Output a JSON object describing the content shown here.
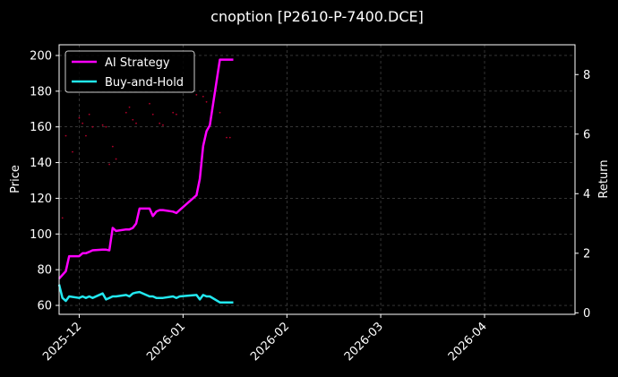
{
  "chart_data": {
    "type": "line",
    "title": "cnoption [P2610-P-7400.DCE]",
    "xlabel": "",
    "ylabel": "Price",
    "y2label": "Return",
    "x_ticks": [
      "2025-12",
      "2026-01",
      "2026-02",
      "2026-03",
      "2026-04"
    ],
    "xlim": [
      "2025-11-25",
      "2026-04-28"
    ],
    "ylim": [
      55,
      206
    ],
    "y_ticks": [
      60,
      80,
      100,
      120,
      140,
      160,
      180,
      200
    ],
    "y2lim": [
      -0.05,
      9.0
    ],
    "y2_ticks": [
      0,
      2,
      4,
      6,
      8
    ],
    "grid": true,
    "legend_position": "top-left",
    "series": [
      {
        "name": "AI Strategy",
        "axis": "right",
        "color": "#ff00ff",
        "x": [
          "2025-11-25",
          "2025-11-27",
          "2025-11-28",
          "2025-12-01",
          "2025-12-02",
          "2025-12-03",
          "2025-12-04",
          "2025-12-05",
          "2025-12-08",
          "2025-12-09",
          "2025-12-10",
          "2025-12-11",
          "2025-12-12",
          "2025-12-15",
          "2025-12-16",
          "2025-12-17",
          "2025-12-18",
          "2025-12-19",
          "2025-12-22",
          "2025-12-23",
          "2025-12-24",
          "2025-12-25",
          "2025-12-26",
          "2025-12-29",
          "2025-12-30",
          "2025-12-31",
          "2026-01-05",
          "2026-01-06",
          "2026-01-07",
          "2026-01-08",
          "2026-01-09",
          "2026-01-12",
          "2026-01-13",
          "2026-01-14",
          "2026-01-15",
          "2026-01-16"
        ],
        "y": [
          1.15,
          1.4,
          1.9,
          1.9,
          2.0,
          2.0,
          2.05,
          2.1,
          2.12,
          2.12,
          2.1,
          2.85,
          2.75,
          2.8,
          2.8,
          2.85,
          3.0,
          3.5,
          3.5,
          3.25,
          3.4,
          3.45,
          3.45,
          3.4,
          3.35,
          3.45,
          3.95,
          4.5,
          5.6,
          6.1,
          6.3,
          8.5,
          8.5,
          8.5,
          8.5,
          8.5
        ]
      },
      {
        "name": "Buy-and-Hold",
        "axis": "right",
        "color": "#22e8f0",
        "x": [
          "2025-11-25",
          "2025-11-26",
          "2025-11-27",
          "2025-11-28",
          "2025-12-01",
          "2025-12-02",
          "2025-12-03",
          "2025-12-04",
          "2025-12-05",
          "2025-12-08",
          "2025-12-09",
          "2025-12-10",
          "2025-12-11",
          "2025-12-12",
          "2025-12-15",
          "2025-12-16",
          "2025-12-17",
          "2025-12-18",
          "2025-12-19",
          "2025-12-22",
          "2025-12-23",
          "2025-12-24",
          "2025-12-25",
          "2025-12-26",
          "2025-12-29",
          "2025-12-30",
          "2025-12-31",
          "2026-01-05",
          "2026-01-06",
          "2026-01-07",
          "2026-01-08",
          "2026-01-09",
          "2026-01-12",
          "2026-01-13",
          "2026-01-14",
          "2026-01-15",
          "2026-01-16"
        ],
        "y": [
          0.95,
          0.5,
          0.4,
          0.55,
          0.5,
          0.55,
          0.5,
          0.55,
          0.5,
          0.65,
          0.45,
          0.5,
          0.55,
          0.55,
          0.6,
          0.55,
          0.65,
          0.68,
          0.7,
          0.55,
          0.55,
          0.5,
          0.5,
          0.5,
          0.55,
          0.5,
          0.55,
          0.6,
          0.45,
          0.6,
          0.55,
          0.55,
          0.35,
          0.35,
          0.35,
          0.35,
          0.35
        ]
      },
      {
        "name": "",
        "kind": "scatter",
        "axis": "left",
        "color": "#b0002a",
        "x": [
          "2025-11-26",
          "2025-11-27",
          "2025-11-29",
          "2025-12-01",
          "2025-12-02",
          "2025-12-03",
          "2025-12-04",
          "2025-12-05",
          "2025-12-08",
          "2025-12-09",
          "2025-12-10",
          "2025-12-11",
          "2025-12-12",
          "2025-12-15",
          "2025-12-16",
          "2025-12-17",
          "2025-12-18",
          "2025-12-22",
          "2025-12-23",
          "2025-12-25",
          "2025-12-26",
          "2025-12-29",
          "2025-12-30",
          "2026-01-05",
          "2026-01-07",
          "2026-01-08",
          "2026-01-12",
          "2026-01-14",
          "2026-01-15"
        ],
        "y": [
          109,
          155,
          146,
          165,
          162,
          155,
          167,
          160,
          161,
          160,
          139,
          149,
          142,
          168,
          171,
          164,
          162,
          173,
          167,
          162,
          161,
          168,
          167,
          178,
          177,
          174,
          168,
          154,
          154
        ]
      }
    ]
  }
}
